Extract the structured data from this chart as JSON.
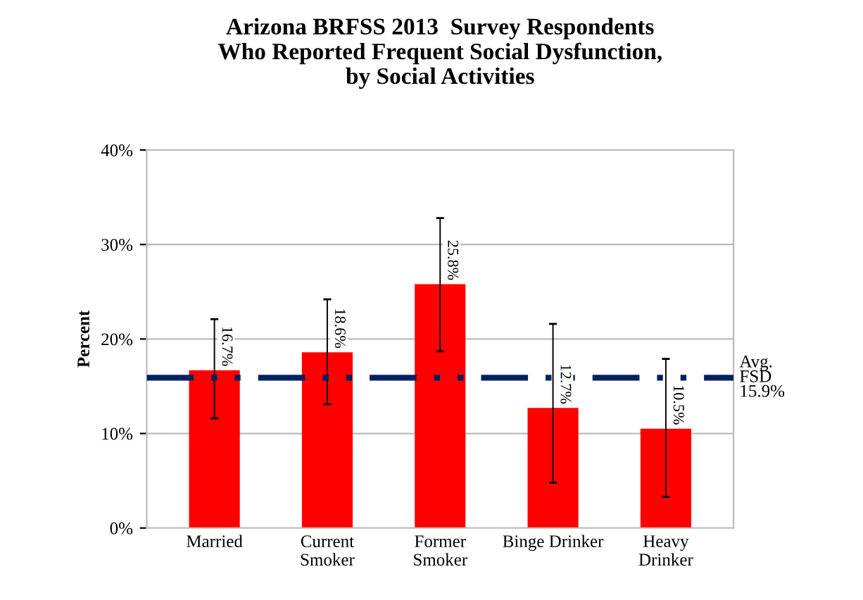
{
  "chart_data": {
    "type": "bar",
    "title": "Arizona BRFSS 2013  Survey Respondents\nWho Reported Frequent Social Dysfunction,\nby Social Activities",
    "ylabel": "Percent",
    "categories": [
      "Married",
      "Current\nSmoker",
      "Former\nSmoker",
      "Binge Drinker",
      "Heavy\nDrinker"
    ],
    "values": [
      16.7,
      18.6,
      25.8,
      12.7,
      10.5
    ],
    "color": "#ff0000",
    "errors": [
      [
        11.6,
        22.1
      ],
      [
        13.1,
        24.2
      ],
      [
        18.7,
        32.8
      ],
      [
        4.8,
        21.6
      ],
      [
        3.3,
        17.9
      ]
    ],
    "value_labels": [
      "16.7%",
      "18.6%",
      "25.8%",
      "12.7%",
      "10.5%"
    ],
    "ylim": [
      0,
      40
    ],
    "yticks": [
      {
        "value": 0,
        "label": "0%"
      },
      {
        "value": 10,
        "label": "10%"
      },
      {
        "value": 20,
        "label": "20%"
      },
      {
        "value": 30,
        "label": "30%"
      },
      {
        "value": 40,
        "label": "40%"
      }
    ],
    "grid": "y",
    "ref_lines": [
      {
        "axis": "y",
        "value": 15.9,
        "label": "Avg.\nFSD\n15.9%",
        "color": "#002060",
        "line_style": "dashdot"
      }
    ]
  }
}
